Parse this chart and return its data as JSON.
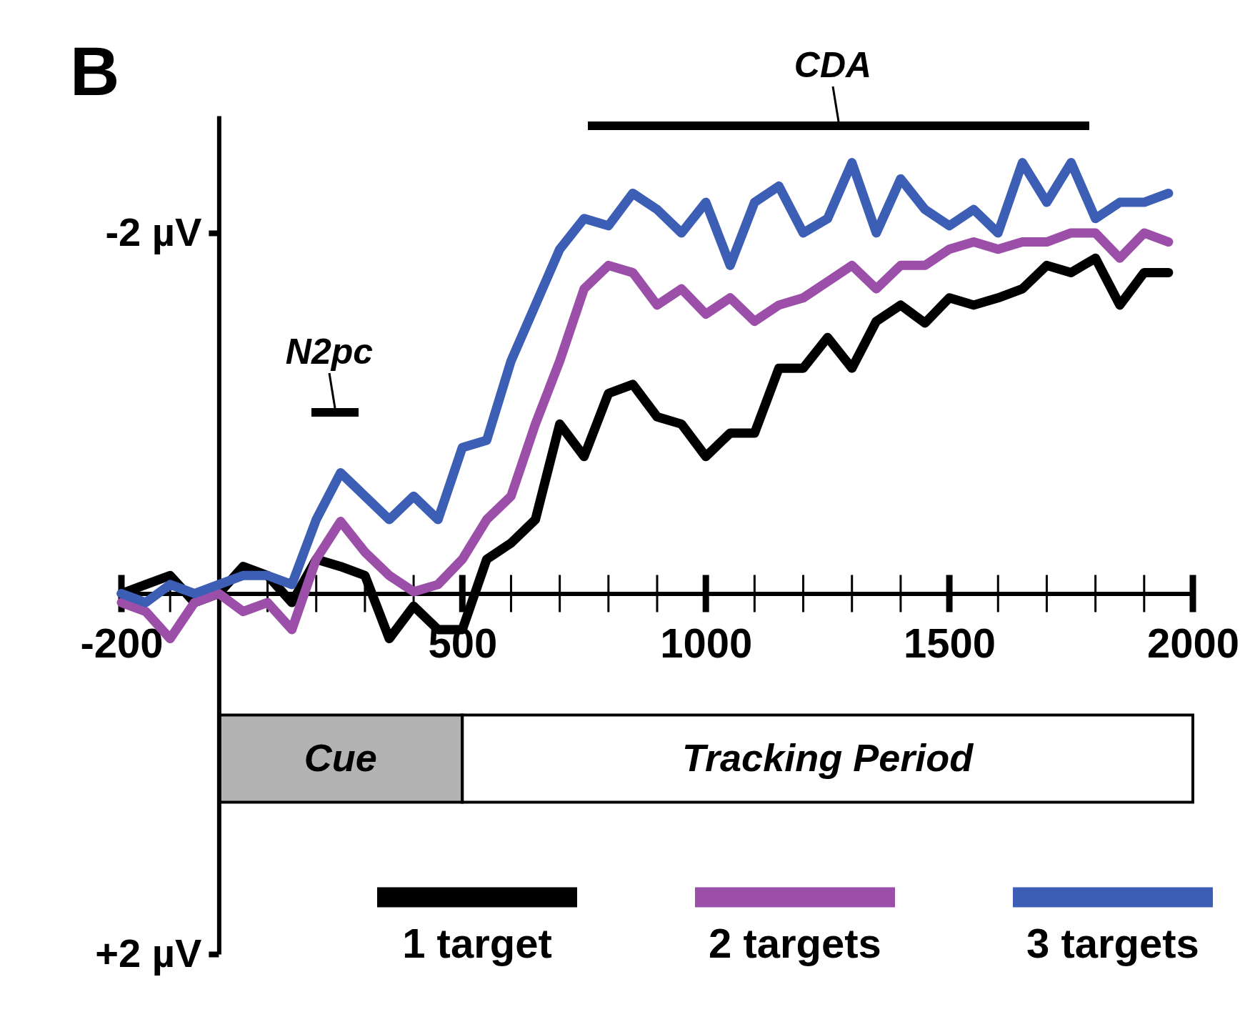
{
  "chart_data": {
    "type": "line",
    "title": "B",
    "x": [
      -200,
      -150,
      -100,
      -50,
      0,
      50,
      100,
      150,
      200,
      250,
      300,
      350,
      400,
      450,
      500,
      550,
      600,
      650,
      700,
      750,
      800,
      850,
      900,
      950,
      1000,
      1050,
      1100,
      1150,
      1200,
      1250,
      1300,
      1350,
      1400,
      1450,
      1500,
      1550,
      1600,
      1650,
      1700,
      1750,
      1800,
      1850,
      1900,
      1950
    ],
    "series": [
      {
        "name": "1 target",
        "color": "#000000",
        "values": [
          0.0,
          -0.05,
          -0.1,
          0.05,
          0.0,
          -0.15,
          -0.1,
          0.05,
          -0.19,
          -0.15,
          -0.1,
          0.25,
          0.07,
          0.2,
          0.2,
          -0.19,
          -0.28,
          -0.41,
          -0.94,
          -0.76,
          -1.11,
          -1.16,
          -0.98,
          -0.94,
          -0.76,
          -0.89,
          -0.89,
          -1.25,
          -1.25,
          -1.42,
          -1.25,
          -1.51,
          -1.6,
          -1.5,
          -1.64,
          -1.6,
          -1.64,
          -1.69,
          -1.82,
          -1.78,
          -1.86,
          -1.6,
          -1.78,
          -1.78
        ]
      },
      {
        "name": "2 targets",
        "color": "#9b4fa8",
        "values": [
          0.05,
          0.1,
          0.25,
          0.05,
          0.0,
          0.1,
          0.05,
          0.2,
          -0.19,
          -0.4,
          -0.23,
          -0.1,
          -0.01,
          -0.05,
          -0.19,
          -0.41,
          -0.54,
          -0.94,
          -1.29,
          -1.69,
          -1.82,
          -1.78,
          -1.6,
          -1.69,
          -1.55,
          -1.64,
          -1.51,
          -1.6,
          -1.64,
          -1.73,
          -1.82,
          -1.69,
          -1.82,
          -1.82,
          -1.91,
          -1.95,
          -1.91,
          -1.95,
          -1.95,
          -2.0,
          -2.0,
          -1.86,
          -2.0,
          -1.95
        ]
      },
      {
        "name": "3 targets",
        "color": "#3c5fb5",
        "values": [
          0.0,
          0.05,
          -0.05,
          0.0,
          -0.05,
          -0.1,
          -0.1,
          -0.05,
          -0.41,
          -0.67,
          -0.54,
          -0.41,
          -0.54,
          -0.41,
          -0.81,
          -0.85,
          -1.29,
          -1.6,
          -1.91,
          -2.08,
          -2.04,
          -2.22,
          -2.13,
          -2.0,
          -2.17,
          -1.82,
          -2.17,
          -2.26,
          -2.0,
          -2.08,
          -2.39,
          -2.0,
          -2.3,
          -2.13,
          -2.04,
          -2.13,
          -2.0,
          -2.39,
          -2.17,
          -2.39,
          -2.08,
          -2.17,
          -2.17,
          -2.22
        ]
      }
    ],
    "xlim": [
      -200,
      2000
    ],
    "xticks": [
      -200,
      500,
      1000,
      1500,
      2000
    ],
    "ylim": [
      2,
      -2.65
    ],
    "yticks": [
      {
        "value": -2,
        "label": "-2 µV"
      },
      {
        "value": 2,
        "label": "+2 µV"
      }
    ],
    "bands": [
      {
        "axis": "x",
        "from": 0,
        "to": 500,
        "label": "Cue",
        "color": "#b3b3b3"
      },
      {
        "axis": "x",
        "from": 500,
        "to": 2000,
        "label": "Tracking Period",
        "color": "#ffffff"
      }
    ],
    "annotations": [
      "N2pc",
      "CDA"
    ],
    "legend": "bottom",
    "grid": false
  }
}
